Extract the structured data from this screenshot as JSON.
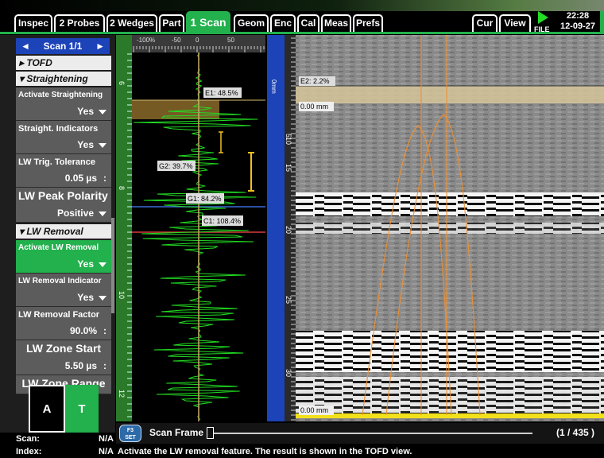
{
  "tabs": [
    {
      "label": "Inspec",
      "active": false
    },
    {
      "label": "2 Probes",
      "active": false
    },
    {
      "label": "2 Wedges",
      "active": false
    },
    {
      "label": "Part",
      "active": false
    },
    {
      "label": "1 Scan",
      "active": true
    },
    {
      "label": "Geom",
      "active": false
    },
    {
      "label": "Enc",
      "active": false
    },
    {
      "label": "Cal",
      "active": false
    },
    {
      "label": "Meas",
      "active": false
    },
    {
      "label": "Prefs",
      "active": false
    }
  ],
  "right_tabs": [
    {
      "label": "Cur"
    },
    {
      "label": "View"
    }
  ],
  "file_label": "FILE",
  "time": "22:28",
  "date": "12-09-27",
  "scan_nav": {
    "label": "Scan 1/1",
    "prev": "◄",
    "next": "►"
  },
  "categories": {
    "tofd": "TOFD",
    "straightening": "Straightening",
    "lw_removal": "LW Removal"
  },
  "params": {
    "activate_straightening": {
      "label": "Activate Straightening",
      "value": "Yes"
    },
    "straight_indicators": {
      "label": "Straight. Indicators",
      "value": "Yes"
    },
    "lw_trig_tolerance": {
      "label": "LW Trig. Tolerance",
      "value": "0.05 µs"
    },
    "lw_peak_polarity": {
      "label": "LW Peak Polarity",
      "value": "Positive"
    },
    "activate_lw_removal": {
      "label": "Activate LW Removal",
      "value": "Yes"
    },
    "lw_removal_indicator": {
      "label": "LW Removal Indicator",
      "value": "Yes"
    },
    "lw_removal_factor": {
      "label": "LW Removal Factor",
      "value": "90.0%"
    },
    "lw_zone_start": {
      "label": "LW Zone Start",
      "value": "5.50 µs"
    },
    "lw_zone_range": {
      "label": "LW Zone Range",
      "value": ""
    }
  },
  "view_buttons": {
    "a": "A",
    "t": "T"
  },
  "status": {
    "scan_label": "Scan:",
    "scan_value": "N/A",
    "index_label": "Index:",
    "index_value": "N/A"
  },
  "ascan": {
    "amp_ticks": [
      "-100%",
      "-50",
      "0",
      "50"
    ],
    "depth_ticks": [
      "6",
      "8",
      "10",
      "12"
    ],
    "gates": {
      "e1": "E1: 48.5%",
      "g2": "G2: 39.7%",
      "g1": "G1: 84.2%",
      "c1": "C1: 108.4%"
    }
  },
  "dscan": {
    "depth_ticks": [
      "5",
      "10",
      "15",
      "20",
      "25",
      "30"
    ],
    "top_ruler_label": "0mm",
    "e2_label": "E2: 2.2%",
    "top_mm": "0.00 mm",
    "bottom_mm": "0.00 mm"
  },
  "frame": {
    "key_top": "F3",
    "key_bottom": "SET",
    "label": "Scan Frame",
    "count": "(1 / 435 )",
    "position_fraction": 0.0
  },
  "help_text": "Activate the LW removal feature. The result is shown in the TOFD view.",
  "colors": {
    "accent": "#22b14c",
    "header_blue": "#1d43b8",
    "gate_yellow": "#f0c020",
    "cursor_orange": "#f09030",
    "signal_green": "#22dd22"
  }
}
